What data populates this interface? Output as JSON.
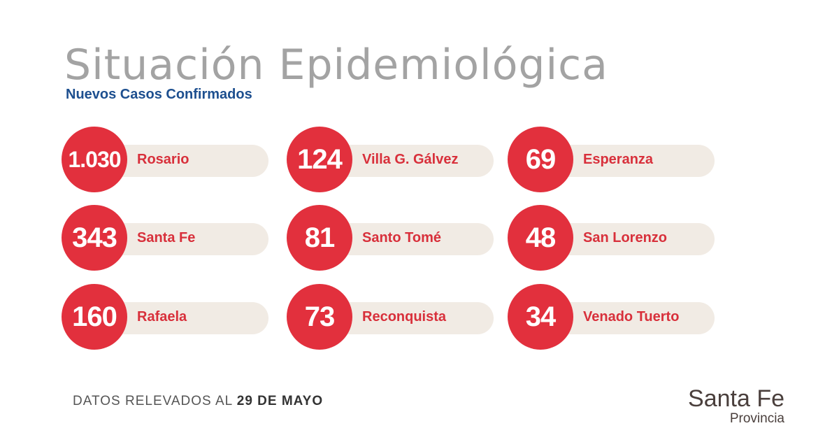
{
  "title": "Situación Epidemiológica",
  "subtitle": "Nuevos Casos Confirmados",
  "cards": [
    {
      "value": "1.030",
      "city": "Rosario"
    },
    {
      "value": "124",
      "city": "Villa G. Gálvez"
    },
    {
      "value": "69",
      "city": "Esperanza"
    },
    {
      "value": "343",
      "city": "Santa Fe"
    },
    {
      "value": "81",
      "city": "Santo Tomé"
    },
    {
      "value": "48",
      "city": "San Lorenzo"
    },
    {
      "value": "160",
      "city": "Rafaela"
    },
    {
      "value": "73",
      "city": "Reconquista"
    },
    {
      "value": "34",
      "city": "Venado Tuerto"
    }
  ],
  "footer": {
    "prefix": "DATOS RELEVADOS AL ",
    "date": "29 DE MAYO"
  },
  "logo": {
    "name": "Santa Fe",
    "sub": "Provincia"
  },
  "colors": {
    "accent": "#e2303d",
    "pill": "#f1ebe4",
    "subtitle": "#1d4f8f",
    "label": "#d8303b"
  }
}
